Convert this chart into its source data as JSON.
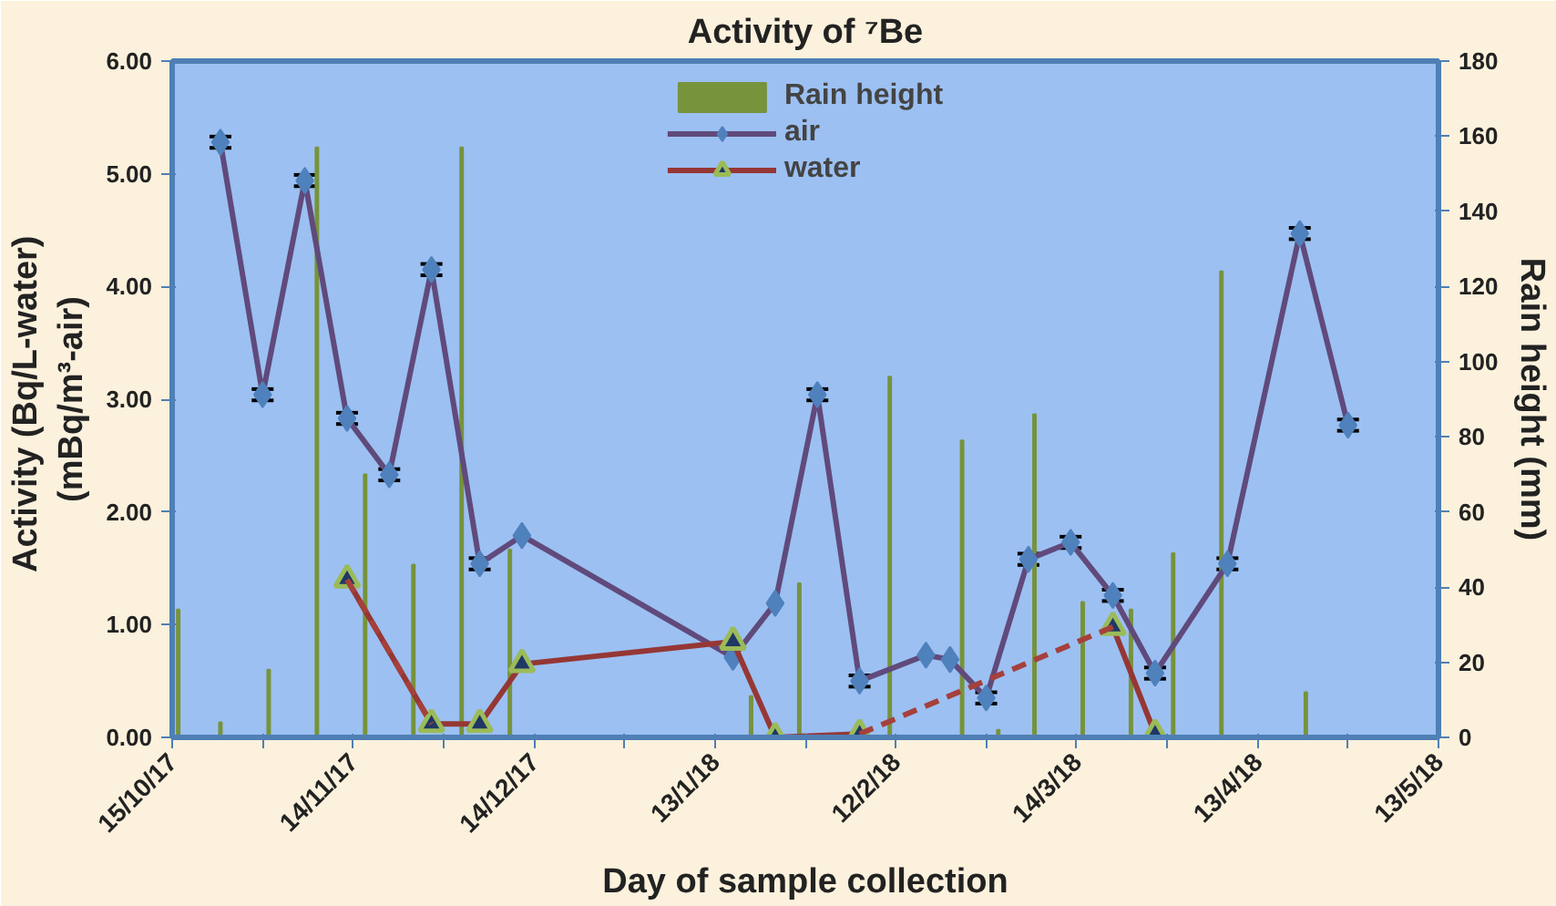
{
  "chart_data": {
    "type": "line",
    "title": "Activity of ⁷Be",
    "xlabel": "Day of sample collection",
    "ylabel": "Activity  (Bq/L-water)\n(mBq/m³-air)",
    "y2label": "Rain height (mm)",
    "xlim": [
      "2017-10-15",
      "2018-05-13"
    ],
    "xticks": [
      {
        "value": "2017-10-15",
        "label": "15/10/17"
      },
      {
        "value": "2017-10-30",
        "label": null
      },
      {
        "value": "2017-11-14",
        "label": "14/11/17"
      },
      {
        "value": "2017-11-29",
        "label": null
      },
      {
        "value": "2017-12-14",
        "label": "14/12/17"
      },
      {
        "value": "2017-12-29",
        "label": null
      },
      {
        "value": "2018-01-13",
        "label": "13/1/18"
      },
      {
        "value": "2018-01-28",
        "label": null
      },
      {
        "value": "2018-02-12",
        "label": "12/2/18"
      },
      {
        "value": "2018-02-27",
        "label": null
      },
      {
        "value": "2018-03-14",
        "label": "14/3/18"
      },
      {
        "value": "2018-03-29",
        "label": null
      },
      {
        "value": "2018-04-13",
        "label": "13/4/18"
      },
      {
        "value": "2018-04-28",
        "label": null
      },
      {
        "value": "2018-05-13",
        "label": "13/5/18"
      }
    ],
    "ylim": [
      0,
      6
    ],
    "yticks": [
      {
        "value": 0,
        "label": "0.00"
      },
      {
        "value": 1,
        "label": "1.00"
      },
      {
        "value": 2,
        "label": "2.00"
      },
      {
        "value": 3,
        "label": "3.00"
      },
      {
        "value": 4,
        "label": "4.00"
      },
      {
        "value": 5,
        "label": "5.00"
      },
      {
        "value": 6,
        "label": "6.00"
      }
    ],
    "y2lim": [
      0,
      180
    ],
    "y2ticks": [
      0,
      20,
      40,
      60,
      80,
      100,
      120,
      140,
      160,
      180
    ],
    "grid": false,
    "legend": "top",
    "series": [
      {
        "type": "bar",
        "name": "Rain height",
        "color": "#77933c",
        "axis": "y2",
        "x": [
          "2017-10-16",
          "2017-10-23",
          "2017-10-31",
          "2017-11-08",
          "2017-11-16",
          "2017-11-24",
          "2017-12-02",
          "2017-12-10",
          "2018-01-19",
          "2018-01-27",
          "2018-02-11",
          "2018-02-23",
          "2018-03-01",
          "2018-03-07",
          "2018-03-15",
          "2018-03-23",
          "2018-03-30",
          "2018-04-07",
          "2018-04-21"
        ],
        "values": [
          34,
          4,
          18,
          157,
          70,
          46,
          157,
          50,
          11,
          41,
          96,
          79,
          2,
          86,
          36,
          34,
          49,
          124,
          12
        ]
      },
      {
        "name": "air",
        "color": "#604a7b",
        "marker": "diamond",
        "line_style": "solid",
        "x": [
          "2017-10-23",
          "2017-10-30",
          "2017-11-06",
          "2017-11-13",
          "2017-11-20",
          "2017-11-27",
          "2017-12-05",
          "2017-12-12",
          "2018-01-16",
          "2018-01-23",
          "2018-01-30",
          "2018-02-06",
          "2018-02-17",
          "2018-02-21",
          "2018-02-27",
          "2018-03-06",
          "2018-03-13",
          "2018-03-20",
          "2018-03-27",
          "2018-04-08",
          "2018-04-20",
          "2018-04-28"
        ],
        "values": [
          5.28,
          3.04,
          4.94,
          2.83,
          2.33,
          4.15,
          1.54,
          1.79,
          0.71,
          1.19,
          3.04,
          0.5,
          0.73,
          0.69,
          0.35,
          1.58,
          1.73,
          1.26,
          0.57,
          1.54,
          4.47,
          2.77
        ],
        "errors": [
          0.05,
          0.05,
          0.05,
          0.05,
          0.05,
          0.05,
          0.05,
          null,
          null,
          null,
          0.05,
          0.05,
          null,
          null,
          0.05,
          0.05,
          0.05,
          0.05,
          0.05,
          0.05,
          0.05,
          0.05
        ]
      },
      {
        "name": "water",
        "color": "#953735",
        "marker": "triangle",
        "line_style": "solid",
        "x": [
          "2017-11-13",
          "2017-11-27",
          "2017-12-05",
          "2017-12-12",
          "2018-01-16",
          "2018-01-23",
          "2018-02-06",
          "2018-03-13",
          "2018-03-20",
          "2018-03-27"
        ],
        "values": [
          1.4,
          0.12,
          0.12,
          0.65,
          0.85,
          0.0,
          0.03,
          null,
          0.98,
          0.03
        ]
      },
      {
        "type": "line",
        "color": "#a5403c",
        "marker": "none",
        "line_style": "dashed",
        "x": [
          "2017-11-13",
          "2017-11-27",
          "2017-12-05",
          "2018-02-06",
          "2018-03-20"
        ],
        "values": [
          1.4,
          0.12,
          null,
          0.03,
          0.98
        ]
      }
    ]
  }
}
